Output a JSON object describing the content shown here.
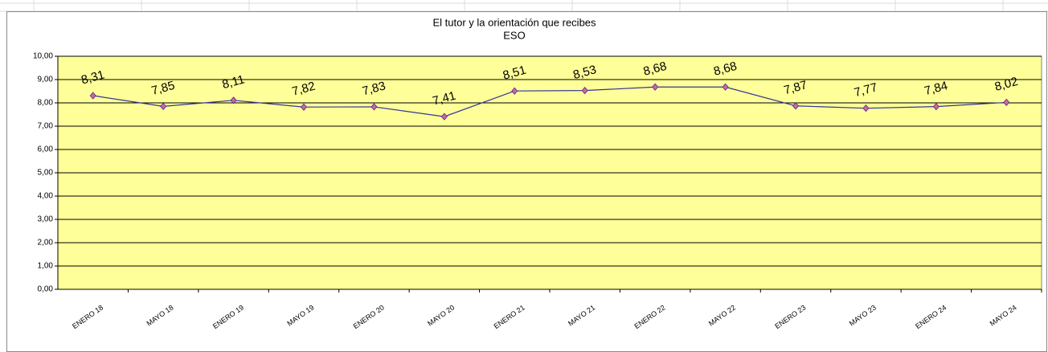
{
  "chart_data": {
    "type": "line",
    "title": "El tutor y la orientación que recibes",
    "subtitle": "ESO",
    "categories": [
      "ENERO 18",
      "MAYO 18",
      "ENERO 19",
      "MAYO 19",
      "ENERO 20",
      "MAYO 20",
      "ENERO 21",
      "MAYO 21",
      "ENERO 22",
      "MAYO 22",
      "ENERO 23",
      "MAYO 23",
      "ENERO 24",
      "MAYO 24"
    ],
    "series": [
      {
        "name": "ESO",
        "color": "#333399",
        "marker_color": "#e0609a",
        "values": [
          8.31,
          7.85,
          8.11,
          7.82,
          7.83,
          7.41,
          8.51,
          8.53,
          8.68,
          8.68,
          7.87,
          7.77,
          7.84,
          8.02
        ],
        "value_labels": [
          "8,31",
          "7,85",
          "8,11",
          "7,82",
          "7,83",
          "7,41",
          "8,51",
          "8,53",
          "8,68",
          "8,68",
          "7,87",
          "7,77",
          "7,84",
          "8,02"
        ]
      }
    ],
    "ylim": [
      0,
      10
    ],
    "yticks": [
      {
        "value": 0,
        "label": "0,00"
      },
      {
        "value": 1,
        "label": "1,00"
      },
      {
        "value": 2,
        "label": "2,00"
      },
      {
        "value": 3,
        "label": "3,00"
      },
      {
        "value": 4,
        "label": "4,00"
      },
      {
        "value": 5,
        "label": "5,00"
      },
      {
        "value": 6,
        "label": "6,00"
      },
      {
        "value": 7,
        "label": "7,00"
      },
      {
        "value": 8,
        "label": "8,00"
      },
      {
        "value": 9,
        "label": "9,00"
      },
      {
        "value": 10,
        "label": "10,00"
      }
    ],
    "grid": true,
    "plot_background": "#ffff99"
  }
}
